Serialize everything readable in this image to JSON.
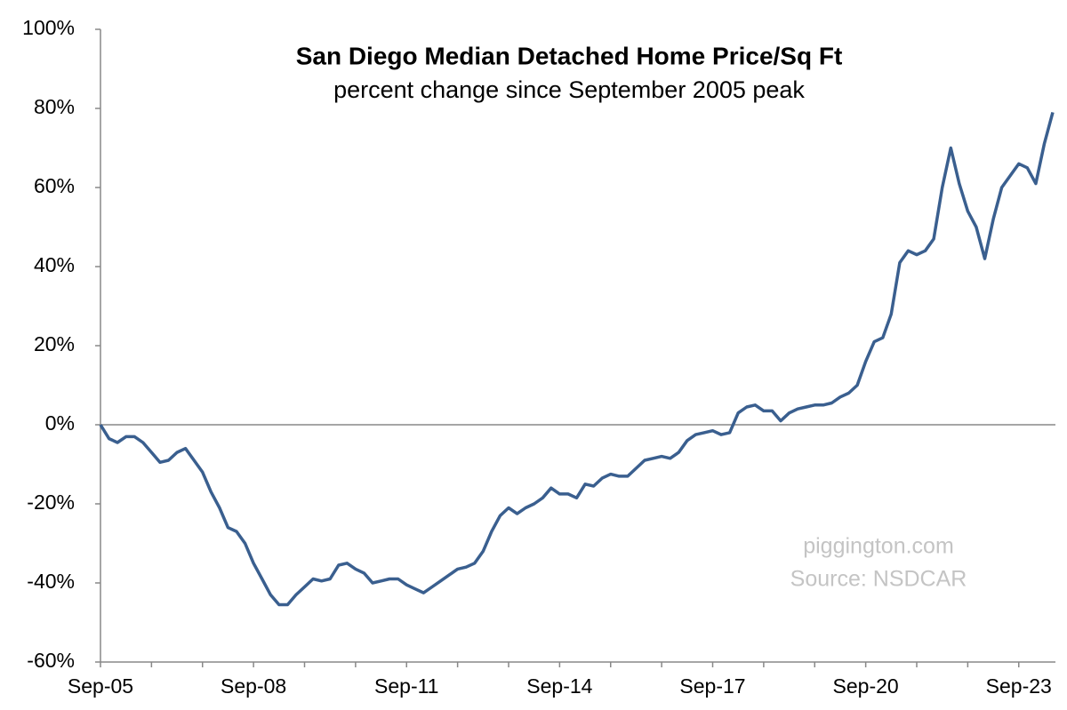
{
  "chart_data": {
    "type": "line",
    "title": "San Diego Median Detached Home Price/Sq Ft",
    "subtitle": "percent change since September 2005 peak",
    "annotations": [
      "piggington.com",
      "Source: NSDCAR"
    ],
    "categories": [
      "Sep-05",
      null,
      null,
      null,
      null,
      null,
      null,
      null,
      null,
      null,
      null,
      null,
      null,
      null,
      null,
      null,
      null,
      null,
      "Sep-08",
      null,
      null,
      null,
      null,
      null,
      null,
      null,
      null,
      null,
      null,
      null,
      null,
      null,
      null,
      null,
      null,
      null,
      "Sep-11",
      null,
      null,
      null,
      null,
      null,
      null,
      null,
      null,
      null,
      null,
      null,
      null,
      null,
      null,
      null,
      null,
      null,
      "Sep-14",
      null,
      null,
      null,
      null,
      null,
      null,
      null,
      null,
      null,
      null,
      null,
      null,
      null,
      null,
      null,
      null,
      null,
      "Sep-17",
      null,
      null,
      null,
      null,
      null,
      null,
      null,
      null,
      null,
      null,
      null,
      null,
      null,
      null,
      null,
      null,
      null,
      "Sep-20",
      null,
      null,
      null,
      null,
      null,
      null,
      null,
      null,
      null,
      null,
      null,
      null,
      null,
      null,
      null,
      null,
      null,
      "Sep-23",
      null,
      null,
      null,
      null
    ],
    "series": [
      {
        "name": "San Diego Median Detached Home Price/Sq Ft",
        "color": "#3a5f8f",
        "values": [
          0,
          -3.5,
          -4.5,
          -3,
          -3,
          -4.5,
          -7,
          -9.5,
          -9,
          -7,
          -6,
          -9,
          -12,
          -17,
          -21,
          -26,
          -27,
          -30,
          -35,
          -39,
          -43,
          -45.5,
          -45.5,
          -43,
          -41,
          -39,
          -39.5,
          -39,
          -35.5,
          -35,
          -36.5,
          -37.5,
          -40,
          -39.5,
          -39,
          -39,
          -40.5,
          -41.5,
          -42.5,
          -41,
          -39.5,
          -38,
          -36.5,
          -36,
          -35,
          -32,
          -27,
          -23,
          -21,
          -22.5,
          -21,
          -20,
          -18.5,
          -16,
          -17.5,
          -17.5,
          -18.5,
          -15,
          -15.5,
          -13.5,
          -12.5,
          -13,
          -13,
          -11,
          -9,
          -8.5,
          -8,
          -8.5,
          -7,
          -4,
          -2.5,
          -2,
          -1.5,
          -2.5,
          -2,
          3,
          4.5,
          5,
          3.5,
          3.5,
          1,
          3,
          4,
          4.5,
          5,
          5,
          5.5,
          7,
          8,
          10,
          16,
          21,
          22,
          28,
          41,
          44,
          43,
          44,
          47,
          60,
          70,
          61,
          54,
          50,
          42,
          52,
          60,
          63,
          66,
          65,
          61,
          71,
          79
        ]
      }
    ],
    "ylim": [
      -60,
      100
    ],
    "yticks": [
      {
        "value": -60,
        "label": "-60%"
      },
      {
        "value": -40,
        "label": "-40%"
      },
      {
        "value": -20,
        "label": "-20%"
      },
      {
        "value": 0,
        "label": "0%"
      },
      {
        "value": 20,
        "label": "20%"
      },
      {
        "value": 40,
        "label": "40%"
      },
      {
        "value": 60,
        "label": "60%"
      },
      {
        "value": 80,
        "label": "80%"
      },
      {
        "value": 100,
        "label": "100%"
      }
    ],
    "grid": false
  }
}
